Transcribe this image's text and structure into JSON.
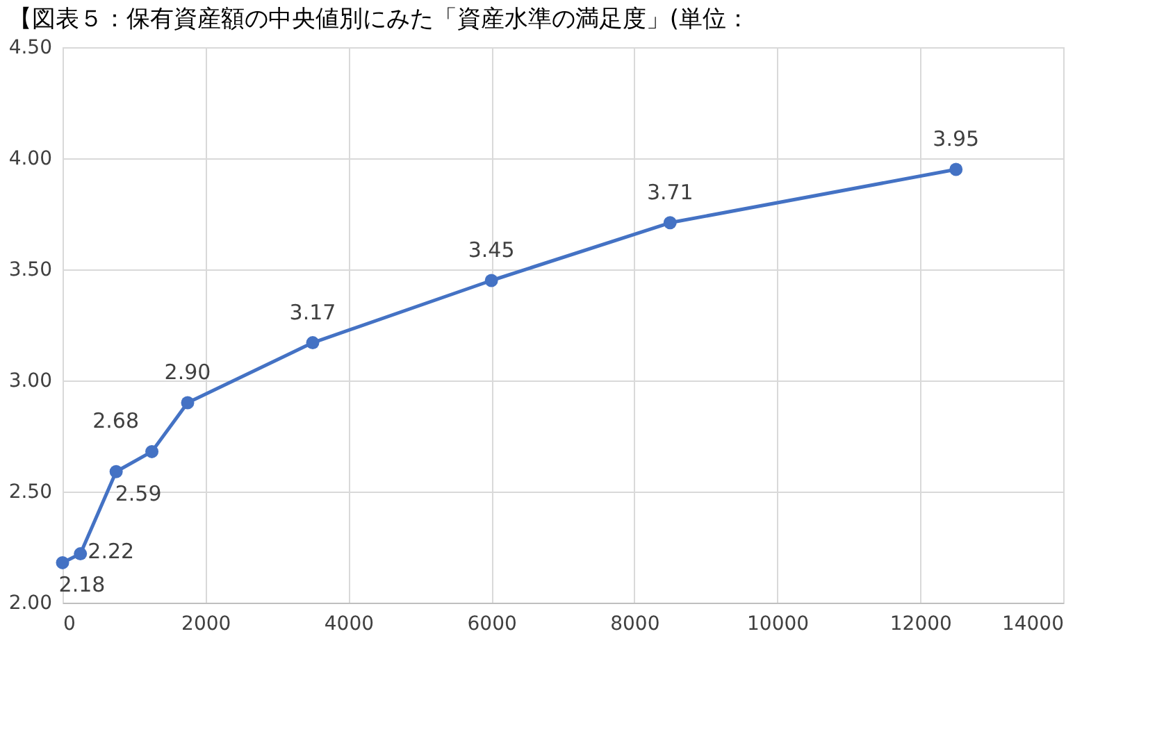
{
  "chart_data": {
    "type": "line",
    "title": "【図表５：保有資産額の中央値別にみた「資産水準の満足度」(単位：",
    "x": [
      0,
      250,
      750,
      1250,
      1750,
      3500,
      6000,
      8500,
      12500
    ],
    "series": [
      {
        "color": "#4472c4",
        "values": [
          2.18,
          2.22,
          2.59,
          2.68,
          2.9,
          3.17,
          3.45,
          3.71,
          3.95
        ],
        "value_labels": [
          "2.18",
          "2.22",
          "2.59",
          "2.68",
          "2.90",
          "3.17",
          "3.45",
          "3.71",
          "3.95"
        ]
      }
    ],
    "xlim": [
      0,
      14000
    ],
    "xticks": [
      0,
      2000,
      4000,
      6000,
      8000,
      10000,
      12000,
      14000
    ],
    "ylim": [
      2,
      4.5
    ],
    "yticks": [
      {
        "value": 2,
        "label": "2.00"
      },
      {
        "value": 2.5,
        "label": "2.50"
      },
      {
        "value": 3,
        "label": "3.00"
      },
      {
        "value": 3.5,
        "label": "3.50"
      },
      {
        "value": 4,
        "label": "4.00"
      },
      {
        "value": 4.5,
        "label": "4.50"
      }
    ],
    "grid": true,
    "marker": "circle",
    "line_style": "solid"
  }
}
